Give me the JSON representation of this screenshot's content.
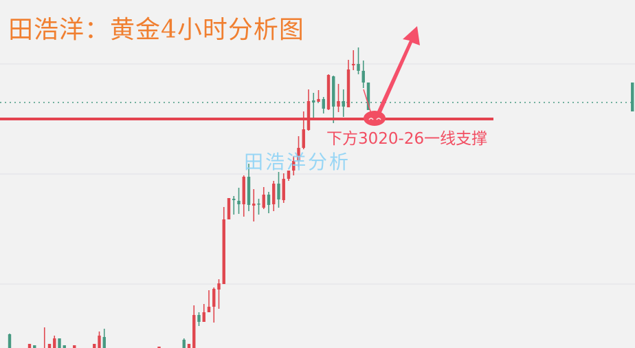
{
  "title": "田浩洋：黄金4小时分析图",
  "watermark": "田浩洋分析",
  "annotation": {
    "support_label": "下方3020-26一线支撑",
    "support_level": 3023.25,
    "color": "#f24e62",
    "arrow_direction": "up"
  },
  "colors": {
    "up": "#e0474f",
    "down": "#479a82",
    "title": "#f07f30",
    "watermark": "#8fd3f6",
    "background": "#f2f2f2",
    "grid": "#e6e6ea"
  },
  "chart_data": {
    "type": "candlestick",
    "timeframe": "4小时",
    "ylim": [
      2940,
      3066.5
    ],
    "grid": true,
    "gridlines_y": [
      3043.25,
      3003.25,
      2963.25
    ],
    "current_price_line": 3029.25,
    "candles": [
      {
        "t": 0,
        "o": 2945,
        "h": 2945.25,
        "l": 2936,
        "c": 2938
      },
      {
        "t": 4,
        "o": 2936,
        "h": 2941.5,
        "l": 2935,
        "c": 2941.5
      },
      {
        "t": 5,
        "o": 2941,
        "h": 2941,
        "l": 2936,
        "c": 2937
      },
      {
        "t": 7,
        "o": 2937,
        "h": 2947.5,
        "l": 2935,
        "c": 2940
      },
      {
        "t": 8,
        "o": 2937,
        "h": 2941.5,
        "l": 2936,
        "c": 2941.5
      },
      {
        "t": 9,
        "o": 2938,
        "h": 2944.5,
        "l": 2936,
        "c": 2943.5
      },
      {
        "t": 10,
        "o": 2943.5,
        "h": 2943.5,
        "l": 2936,
        "c": 2938
      },
      {
        "t": 11,
        "o": 2941,
        "h": 2941,
        "l": 2936,
        "c": 2937
      },
      {
        "t": 13,
        "o": 2937,
        "h": 2941,
        "l": 2936,
        "c": 2941
      },
      {
        "t": 17,
        "o": 2937,
        "h": 2941.5,
        "l": 2936,
        "c": 2941.5
      },
      {
        "t": 18,
        "o": 2938,
        "h": 2946,
        "l": 2936,
        "c": 2944.5
      },
      {
        "t": 19,
        "o": 2944,
        "h": 2947,
        "l": 2936,
        "c": 2938
      },
      {
        "t": 30,
        "o": 2937,
        "h": 2940.5,
        "l": 2936,
        "c": 2940.5
      },
      {
        "t": 35,
        "o": 2943,
        "h": 2943.5,
        "l": 2936,
        "c": 2937
      },
      {
        "t": 36,
        "o": 2937,
        "h": 2941.5,
        "l": 2936,
        "c": 2941.5
      },
      {
        "t": 37,
        "o": 2940,
        "h": 2955.5,
        "l": 2938,
        "c": 2952
      },
      {
        "t": 38,
        "o": 2952,
        "h": 2953,
        "l": 2948,
        "c": 2949.5
      },
      {
        "t": 39,
        "o": 2949.5,
        "h": 2956,
        "l": 2949.5,
        "c": 2953
      },
      {
        "t": 40,
        "o": 2953,
        "h": 2961,
        "l": 2953,
        "c": 2955
      },
      {
        "t": 41,
        "o": 2955,
        "h": 2962,
        "l": 2949.25,
        "c": 2961.5
      },
      {
        "t": 42,
        "o": 2961.25,
        "h": 2965,
        "l": 2954.25,
        "c": 2963.5
      },
      {
        "t": 43,
        "o": 2963.25,
        "h": 2991.25,
        "l": 2963.25,
        "c": 2986.75
      },
      {
        "t": 44,
        "o": 2986.75,
        "h": 2994.5,
        "l": 2986.75,
        "c": 2994.5
      },
      {
        "t": 45,
        "o": 2994.25,
        "h": 2995.25,
        "l": 2988.5,
        "c": 2993.75
      },
      {
        "t": 46,
        "o": 2993.5,
        "h": 2998.25,
        "l": 2988.75,
        "c": 2992.25
      },
      {
        "t": 47,
        "o": 2992.25,
        "h": 3002.75,
        "l": 2987.75,
        "c": 3002.25
      },
      {
        "t": 48,
        "o": 3002.25,
        "h": 3007,
        "l": 2989.75,
        "c": 2992
      },
      {
        "t": 49,
        "o": 2991.75,
        "h": 2997.75,
        "l": 2986,
        "c": 2992.5
      },
      {
        "t": 50,
        "o": 2992.5,
        "h": 2994.25,
        "l": 2988.5,
        "c": 2992.25
      },
      {
        "t": 51,
        "o": 2991,
        "h": 2998.5,
        "l": 2990.5,
        "c": 2995.75
      },
      {
        "t": 52,
        "o": 2995.75,
        "h": 2996.75,
        "l": 2989,
        "c": 2992
      },
      {
        "t": 53,
        "o": 2992.25,
        "h": 3000.75,
        "l": 2989.75,
        "c": 2999.75
      },
      {
        "t": 54,
        "o": 2999.75,
        "h": 3004,
        "l": 2991,
        "c": 2994
      },
      {
        "t": 55,
        "o": 2993.75,
        "h": 3003.5,
        "l": 2992.75,
        "c": 3001.5
      },
      {
        "t": 56,
        "o": 3001.5,
        "h": 3004.5,
        "l": 3000.75,
        "c": 3004.5
      },
      {
        "t": 57,
        "o": 3004.5,
        "h": 3009.75,
        "l": 3002.75,
        "c": 3008
      },
      {
        "t": 58,
        "o": 3008.25,
        "h": 3017,
        "l": 3005.75,
        "c": 3012.75
      },
      {
        "t": 59,
        "o": 3012.75,
        "h": 3026,
        "l": 3012.25,
        "c": 3019.5
      },
      {
        "t": 60,
        "o": 3019.25,
        "h": 3034,
        "l": 3019,
        "c": 3029.75
      },
      {
        "t": 61,
        "o": 3030,
        "h": 3032.75,
        "l": 3023.25,
        "c": 3029.25
      },
      {
        "t": 62,
        "o": 3029.5,
        "h": 3033.75,
        "l": 3029.5,
        "c": 3030.5
      },
      {
        "t": 63,
        "o": 3030.5,
        "h": 3031.25,
        "l": 3025.25,
        "c": 3027
      },
      {
        "t": 64,
        "o": 3026.75,
        "h": 3039.5,
        "l": 3026.5,
        "c": 3039.25
      },
      {
        "t": 65,
        "o": 3038.75,
        "h": 3039,
        "l": 3021.75,
        "c": 3027.75
      },
      {
        "t": 66,
        "o": 3027.75,
        "h": 3036,
        "l": 3025.75,
        "c": 3029.75
      },
      {
        "t": 67,
        "o": 3029.75,
        "h": 3034,
        "l": 3024,
        "c": 3027.75
      },
      {
        "t": 68,
        "o": 3027.5,
        "h": 3044.75,
        "l": 3027.5,
        "c": 3041.25
      },
      {
        "t": 69,
        "o": 3042.75,
        "h": 3048.25,
        "l": 3041,
        "c": 3043.25
      },
      {
        "t": 70,
        "o": 3043.25,
        "h": 3049.25,
        "l": 3039.5,
        "c": 3040.75
      },
      {
        "t": 71,
        "o": 3040.75,
        "h": 3044.5,
        "l": 3034.5,
        "c": 3036.5
      },
      {
        "t": 72,
        "o": 3036.5,
        "h": 3036.5,
        "l": 3026.5,
        "c": 3026.5
      },
      {
        "t": 125,
        "o": 3036.5,
        "h": 3036.5,
        "l": 3026,
        "c": 3026
      }
    ]
  }
}
